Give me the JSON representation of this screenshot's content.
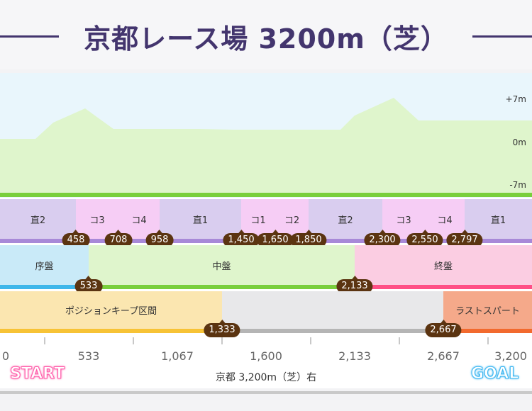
{
  "title": "京都レース場 3200m（芝）",
  "elevation": {
    "labels": [
      "+7m",
      "0m",
      "-7m"
    ]
  },
  "segments": [
    {
      "label": "直2",
      "type": "straight"
    },
    {
      "label": "コ3",
      "type": "corner"
    },
    {
      "label": "コ4",
      "type": "corner"
    },
    {
      "label": "直1",
      "type": "straight"
    },
    {
      "label": "コ1",
      "type": "corner"
    },
    {
      "label": "コ2",
      "type": "corner"
    },
    {
      "label": "直2",
      "type": "straight"
    },
    {
      "label": "コ3",
      "type": "corner"
    },
    {
      "label": "コ4",
      "type": "corner"
    },
    {
      "label": "直1",
      "type": "straight"
    }
  ],
  "segment_markers": [
    "458",
    "708",
    "958",
    "1,450",
    "1,650",
    "1,850",
    "2,300",
    "2,550",
    "2,797"
  ],
  "phases": [
    {
      "label": "序盤"
    },
    {
      "label": "中盤"
    },
    {
      "label": "終盤"
    }
  ],
  "phase_markers": [
    "533",
    "2,133"
  ],
  "zones": [
    {
      "label": "ポジションキープ区間"
    },
    {
      "label": ""
    },
    {
      "label": "ラストスパート"
    }
  ],
  "zone_markers": [
    "1,333",
    "2,667"
  ],
  "scale": [
    "0",
    "533",
    "1,067",
    "1,600",
    "2,133",
    "2,667",
    "3,200"
  ],
  "start_label": "START",
  "goal_label": "GOAL",
  "course_note": "京都 3,200m（芝）右",
  "colors": {
    "title": "#43356e",
    "elevation_fill": "#dff5cc",
    "sky": "#e9f6fc",
    "straight": "#d9cdef",
    "corner": "#f6cdf5",
    "early": "#c9eaf8",
    "middle": "#dff5cc",
    "late": "#fbcde2",
    "position_keep": "#fbe6b0",
    "last_spurt": "#f5a98a",
    "marker": "#5b3411"
  }
}
